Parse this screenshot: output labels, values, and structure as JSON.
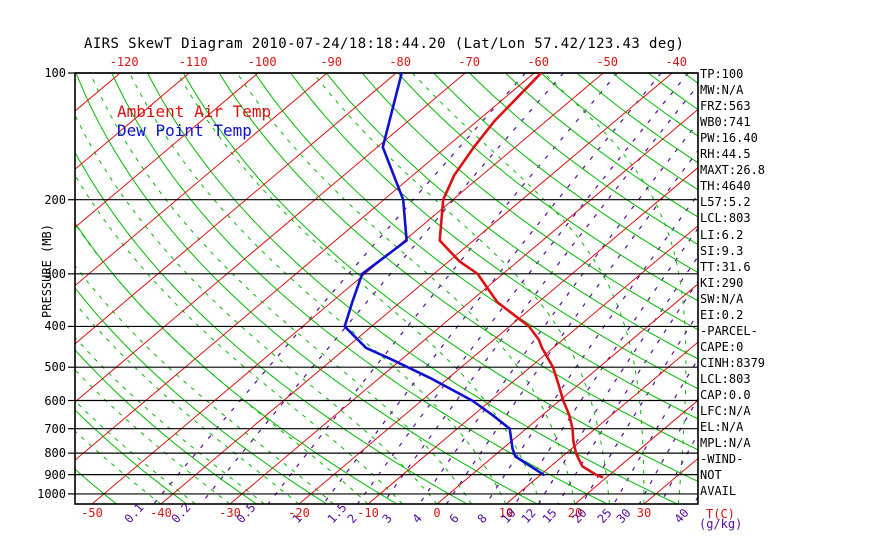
{
  "title": "AIRS SkewT Diagram 2010-07-24/18:18:44.20 (Lat/Lon 57.42/123.43 deg)",
  "legend": {
    "temp": "Ambient Air Temp",
    "dewpoint": "Dew Point Temp"
  },
  "colors": {
    "temp_curve": "#dd1111",
    "dewpoint_curve": "#1010cf",
    "isotherm": "#dd1111",
    "dry_adiabat": "#00bb00",
    "moist_adiabat": "#00bb00",
    "mixing_ratio": "#5a0a9b",
    "frame": "#000000"
  },
  "axes": {
    "pressure": {
      "label": "PRESSURE (MB)",
      "unit": "MB",
      "ticks": [
        100,
        200,
        300,
        400,
        500,
        600,
        700,
        800,
        900,
        1000
      ]
    },
    "temp_top": {
      "ticks": [
        -120,
        -110,
        -100,
        -90,
        -80,
        -70,
        -60,
        -50,
        -40
      ]
    },
    "temp_bottom": {
      "ticks": [
        -50,
        -40,
        -30,
        -20,
        -10,
        0,
        10,
        20,
        30
      ],
      "unit": "T(C)"
    },
    "mixing": {
      "unit": "(g/kg)",
      "labels": [
        {
          "v": "0.1",
          "x": 140
        },
        {
          "v": "0.2",
          "x": 187
        },
        {
          "v": "0.5",
          "x": 252
        },
        {
          "v": "1",
          "x": 308
        },
        {
          "v": "1.5",
          "x": 343
        },
        {
          "v": "2",
          "x": 363
        },
        {
          "v": "3",
          "x": 398
        },
        {
          "v": "4",
          "x": 428
        },
        {
          "v": "6",
          "x": 465
        },
        {
          "v": "8",
          "x": 493
        },
        {
          "v": "10",
          "x": 517
        },
        {
          "v": "12",
          "x": 537
        },
        {
          "v": "15",
          "x": 558
        },
        {
          "v": "20",
          "x": 588
        },
        {
          "v": "25",
          "x": 613
        },
        {
          "v": "30",
          "x": 632
        },
        {
          "v": "40",
          "x": 690
        }
      ]
    }
  },
  "stats": [
    "TP:100",
    "MW:N/A",
    "FRZ:563",
    "WB0:741",
    "PW:16.40",
    "RH:44.5",
    "MAXT:26.8",
    "TH:4640",
    "L57:5.2",
    "LCL:803",
    "LI:6.2",
    "SI:9.3",
    "TT:31.6",
    "KI:290",
    "SW:N/A",
    "EI:0.2",
    "-PARCEL-",
    "CAPE:0",
    "CINH:8379",
    "LCL:803",
    "CAP:0.0",
    "LFC:N/A",
    "EL:N/A",
    "MPL:N/A",
    "-WIND-",
    "NOT",
    "AVAIL"
  ],
  "chart_data": {
    "type": "line",
    "title": "AIRS SkewT Diagram 2010-07-24/18:18:44.20 (Lat/Lon 57.42/123.43 deg)",
    "xlabel": "T(C)",
    "ylabel": "PRESSURE (MB)",
    "pressure_range_mb": [
      100,
      1057
    ],
    "temp_range_bottom_c": [
      -52,
      38
    ],
    "grid": {
      "isotherms_c": [
        -130,
        -120,
        -110,
        -100,
        -90,
        -80,
        -70,
        -60,
        -50,
        -40,
        -30,
        -20,
        -10,
        0,
        10,
        20,
        30,
        40
      ],
      "dry_adiabats_theta_c": [
        -60,
        -50,
        -40,
        -30,
        -20,
        -10,
        0,
        10,
        20,
        30,
        40,
        50,
        60,
        70,
        80,
        90,
        100,
        110,
        120,
        130,
        140,
        150,
        160,
        170,
        180,
        190,
        200
      ],
      "moist_adiabats_thetaw_c": [
        -40,
        -35,
        -30,
        -25,
        -20,
        -15,
        -10,
        -5,
        0,
        5,
        10,
        15,
        20,
        25,
        30,
        35,
        40,
        45
      ],
      "mixing_ratio_g_kg": [
        0.1,
        0.2,
        0.5,
        1,
        1.5,
        2,
        3,
        4,
        6,
        8,
        10,
        12,
        15,
        20,
        25,
        30,
        40
      ]
    },
    "series": [
      {
        "name": "Ambient Air Temp",
        "points_p_t": [
          [
            100,
            -59.0
          ],
          [
            130,
            -57.5
          ],
          [
            150,
            -56.0
          ],
          [
            175,
            -54.0
          ],
          [
            200,
            -51.4
          ],
          [
            250,
            -44.9
          ],
          [
            280,
            -38.5
          ],
          [
            300,
            -33.7
          ],
          [
            350,
            -26.0
          ],
          [
            400,
            -17.2
          ],
          [
            430,
            -13.5
          ],
          [
            450,
            -11.6
          ],
          [
            500,
            -6.7
          ],
          [
            550,
            -2.9
          ],
          [
            600,
            0.5
          ],
          [
            650,
            3.9
          ],
          [
            700,
            6.7
          ],
          [
            750,
            9.0
          ],
          [
            800,
            11.4
          ],
          [
            830,
            13.0
          ],
          [
            860,
            14.6
          ],
          [
            880,
            16.3
          ],
          [
            900,
            18.0
          ],
          [
            912,
            19.3
          ]
        ]
      },
      {
        "name": "Dew Point Temp",
        "points_p_t": [
          [
            100,
            -79.2
          ],
          [
            150,
            -69.2
          ],
          [
            200,
            -57.2
          ],
          [
            250,
            -49.7
          ],
          [
            300,
            -50.4
          ],
          [
            350,
            -47.0
          ],
          [
            400,
            -43.9
          ],
          [
            450,
            -37.1
          ],
          [
            480,
            -31.3
          ],
          [
            530,
            -22.7
          ],
          [
            600,
            -12.7
          ],
          [
            650,
            -7.2
          ],
          [
            700,
            -2.4
          ],
          [
            780,
            1.4
          ],
          [
            815,
            3.2
          ],
          [
            900,
            10.4
          ]
        ]
      }
    ]
  }
}
